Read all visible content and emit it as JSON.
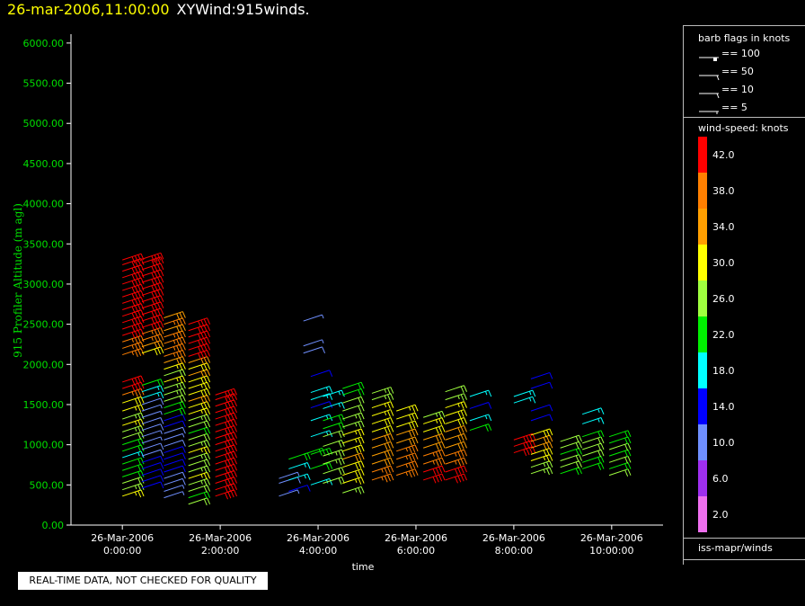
{
  "header": {
    "datetime": "26-mar-2006,11:00:00",
    "product": "XYWind:915winds."
  },
  "chart_data": {
    "type": "wind-barb profile",
    "ylabel": "915 Profiler Altitude (m agl)",
    "xlabel": "time",
    "yticks": [
      "0.00",
      "500.00",
      "1000.00",
      "1500.00",
      "2000.00",
      "2500.00",
      "3000.00",
      "3500.00",
      "4000.00",
      "4500.00",
      "5000.00",
      "5500.00",
      "6000.00"
    ],
    "ylim": [
      0,
      6200
    ],
    "xticks": [
      {
        "hour": 0,
        "date": "26-Mar-2006",
        "time": "0:00:00"
      },
      {
        "hour": 2,
        "date": "26-Mar-2006",
        "time": "2:00:00"
      },
      {
        "hour": 4,
        "date": "26-Mar-2006",
        "time": "4:00:00"
      },
      {
        "hour": 6,
        "date": "26-Mar-2006",
        "time": "6:00:00"
      },
      {
        "hour": 8,
        "date": "26-Mar-2006",
        "time": "8:00:00"
      },
      {
        "hour": 10,
        "date": "26-Mar-2006",
        "time": "10:00:00"
      }
    ],
    "xlim": [
      -1.05,
      11.05
    ],
    "profiles": [
      {
        "hour": 0.0,
        "levels": [
          [
            360,
            28
          ],
          [
            440,
            26
          ],
          [
            520,
            24
          ],
          [
            600,
            22
          ],
          [
            680,
            22
          ],
          [
            760,
            20
          ],
          [
            840,
            18
          ],
          [
            920,
            20
          ],
          [
            1000,
            22
          ],
          [
            1080,
            24
          ],
          [
            1160,
            26
          ],
          [
            1240,
            28
          ],
          [
            1320,
            26
          ],
          [
            1420,
            28
          ],
          [
            1520,
            30
          ],
          [
            1620,
            36
          ],
          [
            1700,
            40
          ],
          [
            1780,
            42
          ],
          [
            2120,
            36
          ],
          [
            2200,
            38
          ],
          [
            2280,
            38
          ],
          [
            2360,
            40
          ],
          [
            2440,
            42
          ],
          [
            2520,
            42
          ],
          [
            2600,
            42
          ],
          [
            2680,
            42
          ],
          [
            2760,
            42
          ],
          [
            2840,
            42
          ],
          [
            2920,
            42
          ],
          [
            3000,
            42
          ],
          [
            3080,
            42
          ],
          [
            3160,
            42
          ],
          [
            3240,
            42
          ],
          [
            3300,
            42
          ]
        ]
      },
      {
        "hour": 0.4,
        "levels": [
          [
            460,
            12
          ],
          [
            540,
            12
          ],
          [
            620,
            14
          ],
          [
            700,
            14
          ],
          [
            780,
            12
          ],
          [
            860,
            10
          ],
          [
            940,
            10
          ],
          [
            1020,
            8
          ],
          [
            1100,
            8
          ],
          [
            1180,
            10
          ],
          [
            1260,
            10
          ],
          [
            1340,
            8
          ],
          [
            1420,
            8
          ],
          [
            1500,
            10
          ],
          [
            1580,
            16
          ],
          [
            1660,
            18
          ],
          [
            1740,
            20
          ],
          [
            2140,
            30
          ],
          [
            2220,
            34
          ],
          [
            2300,
            36
          ],
          [
            2380,
            38
          ],
          [
            2460,
            40
          ],
          [
            2540,
            42
          ],
          [
            2620,
            42
          ],
          [
            2700,
            42
          ],
          [
            2780,
            42
          ],
          [
            2860,
            42
          ],
          [
            2940,
            42
          ],
          [
            3020,
            42
          ],
          [
            3100,
            42
          ],
          [
            3180,
            42
          ],
          [
            3260,
            42
          ],
          [
            3310,
            42
          ]
        ]
      },
      {
        "hour": 0.85,
        "levels": [
          [
            340,
            8
          ],
          [
            420,
            8
          ],
          [
            500,
            10
          ],
          [
            580,
            10
          ],
          [
            660,
            12
          ],
          [
            740,
            14
          ],
          [
            820,
            14
          ],
          [
            900,
            12
          ],
          [
            980,
            10
          ],
          [
            1060,
            8
          ],
          [
            1140,
            10
          ],
          [
            1220,
            12
          ],
          [
            1300,
            14
          ],
          [
            1380,
            20
          ],
          [
            1460,
            22
          ],
          [
            1540,
            24
          ],
          [
            1620,
            26
          ],
          [
            1700,
            26
          ],
          [
            1780,
            28
          ],
          [
            1860,
            24
          ],
          [
            1940,
            28
          ],
          [
            2020,
            34
          ],
          [
            2100,
            36
          ],
          [
            2180,
            38
          ],
          [
            2260,
            38
          ],
          [
            2340,
            36
          ],
          [
            2420,
            34
          ],
          [
            2500,
            36
          ],
          [
            2580,
            34
          ]
        ]
      },
      {
        "hour": 1.35,
        "levels": [
          [
            260,
            24
          ],
          [
            340,
            22
          ],
          [
            420,
            24
          ],
          [
            500,
            26
          ],
          [
            580,
            28
          ],
          [
            660,
            26
          ],
          [
            740,
            24
          ],
          [
            820,
            26
          ],
          [
            900,
            28
          ],
          [
            980,
            26
          ],
          [
            1060,
            24
          ],
          [
            1140,
            22
          ],
          [
            1220,
            24
          ],
          [
            1300,
            26
          ],
          [
            1380,
            28
          ],
          [
            1460,
            30
          ],
          [
            1540,
            32
          ],
          [
            1620,
            30
          ],
          [
            1700,
            28
          ],
          [
            1780,
            30
          ],
          [
            1860,
            32
          ],
          [
            1940,
            30
          ],
          [
            2020,
            32
          ],
          [
            2100,
            40
          ],
          [
            2180,
            40
          ],
          [
            2260,
            42
          ],
          [
            2340,
            42
          ],
          [
            2420,
            42
          ],
          [
            2500,
            42
          ]
        ]
      },
      {
        "hour": 1.9,
        "levels": [
          [
            360,
            42
          ],
          [
            440,
            42
          ],
          [
            520,
            42
          ],
          [
            600,
            42
          ],
          [
            680,
            42
          ],
          [
            760,
            42
          ],
          [
            840,
            42
          ],
          [
            920,
            42
          ],
          [
            1000,
            42
          ],
          [
            1080,
            42
          ],
          [
            1160,
            42
          ],
          [
            1240,
            42
          ],
          [
            1320,
            42
          ],
          [
            1400,
            42
          ],
          [
            1480,
            42
          ],
          [
            1560,
            42
          ],
          [
            1620,
            42
          ]
        ]
      },
      {
        "hour": 3.2,
        "levels": [
          [
            360,
            8
          ],
          [
            520,
            10
          ],
          [
            580,
            8
          ]
        ]
      },
      {
        "hour": 3.4,
        "levels": [
          [
            420,
            12
          ],
          [
            560,
            16
          ],
          [
            700,
            18
          ],
          [
            820,
            20
          ]
        ]
      },
      {
        "hour": 3.7,
        "levels": [
          [
            880,
            20
          ],
          [
            2140,
            10
          ],
          [
            2230,
            8
          ],
          [
            2540,
            8
          ]
        ]
      },
      {
        "hour": 3.85,
        "levels": [
          [
            500,
            18
          ],
          [
            700,
            20
          ],
          [
            880,
            20
          ],
          [
            1100,
            18
          ],
          [
            1300,
            16
          ],
          [
            1460,
            12
          ],
          [
            1560,
            18
          ],
          [
            1650,
            16
          ],
          [
            1850,
            14
          ]
        ]
      },
      {
        "hour": 4.1,
        "levels": [
          [
            520,
            24
          ],
          [
            640,
            24
          ],
          [
            760,
            26
          ],
          [
            860,
            26
          ],
          [
            980,
            24
          ],
          [
            1100,
            24
          ],
          [
            1200,
            22
          ],
          [
            1300,
            20
          ],
          [
            1450,
            18
          ],
          [
            1600,
            18
          ]
        ]
      },
      {
        "hour": 4.5,
        "levels": [
          [
            400,
            26
          ],
          [
            520,
            28
          ],
          [
            620,
            30
          ],
          [
            720,
            30
          ],
          [
            820,
            32
          ],
          [
            920,
            30
          ],
          [
            1020,
            28
          ],
          [
            1120,
            28
          ],
          [
            1220,
            26
          ],
          [
            1320,
            26
          ],
          [
            1420,
            24
          ],
          [
            1520,
            24
          ],
          [
            1620,
            22
          ],
          [
            1700,
            22
          ]
        ]
      },
      {
        "hour": 5.1,
        "levels": [
          [
            560,
            36
          ],
          [
            660,
            36
          ],
          [
            760,
            34
          ],
          [
            860,
            34
          ],
          [
            960,
            32
          ],
          [
            1060,
            32
          ],
          [
            1160,
            30
          ],
          [
            1260,
            30
          ],
          [
            1360,
            28
          ],
          [
            1460,
            28
          ],
          [
            1560,
            26
          ],
          [
            1640,
            26
          ]
        ]
      },
      {
        "hour": 5.6,
        "levels": [
          [
            620,
            38
          ],
          [
            720,
            36
          ],
          [
            820,
            36
          ],
          [
            920,
            36
          ],
          [
            1020,
            34
          ],
          [
            1120,
            32
          ],
          [
            1220,
            30
          ],
          [
            1320,
            30
          ],
          [
            1420,
            28
          ]
        ]
      },
      {
        "hour": 6.15,
        "levels": [
          [
            560,
            40
          ],
          [
            660,
            40
          ],
          [
            760,
            38
          ],
          [
            860,
            36
          ],
          [
            960,
            34
          ],
          [
            1060,
            32
          ],
          [
            1160,
            30
          ],
          [
            1260,
            28
          ],
          [
            1340,
            26
          ]
        ]
      },
      {
        "hour": 6.6,
        "levels": [
          [
            560,
            42
          ],
          [
            660,
            40
          ],
          [
            760,
            38
          ],
          [
            860,
            36
          ],
          [
            960,
            34
          ],
          [
            1060,
            34
          ],
          [
            1160,
            32
          ],
          [
            1260,
            30
          ],
          [
            1360,
            30
          ],
          [
            1460,
            28
          ],
          [
            1560,
            26
          ],
          [
            1660,
            24
          ]
        ]
      },
      {
        "hour": 7.1,
        "levels": [
          [
            1180,
            20
          ],
          [
            1300,
            16
          ],
          [
            1450,
            14
          ],
          [
            1600,
            18
          ]
        ]
      },
      {
        "hour": 8.0,
        "levels": [
          [
            900,
            42
          ],
          [
            980,
            42
          ],
          [
            1060,
            42
          ],
          [
            1520,
            18
          ],
          [
            1600,
            18
          ]
        ]
      },
      {
        "hour": 8.35,
        "levels": [
          [
            640,
            26
          ],
          [
            720,
            26
          ],
          [
            800,
            28
          ],
          [
            880,
            30
          ],
          [
            960,
            32
          ],
          [
            1040,
            32
          ],
          [
            1120,
            30
          ],
          [
            1300,
            14
          ],
          [
            1420,
            12
          ],
          [
            1700,
            14
          ],
          [
            1820,
            14
          ]
        ]
      },
      {
        "hour": 8.95,
        "levels": [
          [
            640,
            22
          ],
          [
            720,
            24
          ],
          [
            800,
            24
          ],
          [
            880,
            22
          ],
          [
            960,
            24
          ],
          [
            1040,
            24
          ]
        ]
      },
      {
        "hour": 9.4,
        "levels": [
          [
            700,
            22
          ],
          [
            780,
            22
          ],
          [
            860,
            24
          ],
          [
            940,
            24
          ],
          [
            1020,
            24
          ],
          [
            1100,
            22
          ],
          [
            1260,
            18
          ],
          [
            1380,
            16
          ]
        ]
      },
      {
        "hour": 9.95,
        "levels": [
          [
            620,
            24
          ],
          [
            700,
            22
          ],
          [
            780,
            24
          ],
          [
            860,
            22
          ],
          [
            940,
            24
          ],
          [
            1020,
            22
          ],
          [
            1100,
            20
          ]
        ]
      }
    ]
  },
  "legend": {
    "barb_title": "barb flags in knots",
    "barb_items": [
      "== 100",
      "== 50",
      "== 10",
      "== 5"
    ],
    "speed_title": "wind-speed: knots",
    "speed_labels": [
      "42.0",
      "38.0",
      "34.0",
      "30.0",
      "26.0",
      "22.0",
      "18.0",
      "14.0",
      "10.0",
      "6.0",
      "2.0"
    ],
    "speed_colors": [
      "#ff0000",
      "#ff7f00",
      "#ff9f00",
      "#ffff00",
      "#9fff3f",
      "#00ee00",
      "#00ffff",
      "#0000ff",
      "#6f8fff",
      "#9f2fef",
      "#ef6fef"
    ],
    "source": "iss-mapr/winds"
  },
  "footer": {
    "qc_notice": "REAL-TIME DATA, NOT CHECKED FOR QUALITY"
  }
}
